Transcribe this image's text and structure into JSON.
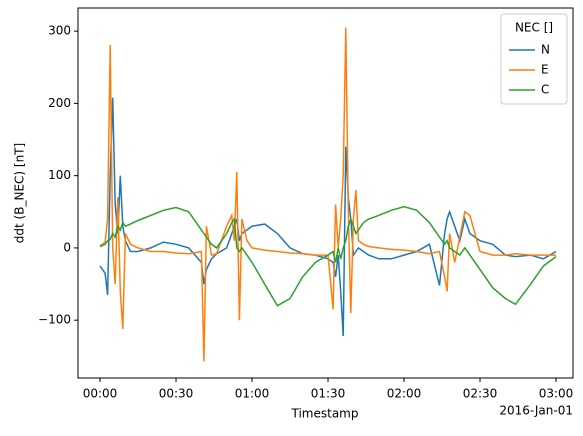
{
  "chart_data": {
    "type": "line",
    "x_label": "Timestamp",
    "y_label": "ddt (B_NEC) [nT]",
    "x_offset_label": "2016-Jan-01",
    "legend_title": "NEC []",
    "legend": "upper right",
    "x": [
      0,
      2,
      3,
      4,
      5,
      6,
      7,
      8,
      9,
      10,
      12,
      15,
      20,
      25,
      30,
      35,
      40,
      41,
      42,
      44,
      46,
      50,
      52,
      53,
      54,
      55,
      56,
      58,
      60,
      65,
      70,
      75,
      80,
      85,
      90,
      92,
      93,
      94,
      95,
      96,
      97,
      98,
      99,
      100,
      101,
      102,
      104,
      106,
      110,
      115,
      120,
      125,
      130,
      134,
      136,
      137,
      138,
      140,
      142,
      144,
      146,
      150,
      155,
      160,
      164,
      170,
      175,
      180
    ],
    "series": [
      {
        "name": "N",
        "color": "#1f77b4",
        "values": [
          -25,
          -35,
          -65,
          100,
          208,
          60,
          20,
          100,
          30,
          10,
          -5,
          -5,
          0,
          8,
          5,
          0,
          -20,
          -50,
          -30,
          -15,
          -8,
          0,
          20,
          30,
          40,
          10,
          20,
          25,
          30,
          33,
          20,
          0,
          -8,
          -10,
          -15,
          -20,
          -40,
          -10,
          -60,
          -122,
          140,
          70,
          40,
          -10,
          -5,
          0,
          -5,
          -10,
          -15,
          -15,
          -10,
          -5,
          5,
          -52,
          20,
          40,
          50,
          30,
          10,
          40,
          20,
          10,
          5,
          -10,
          -12,
          -10,
          -15,
          -5
        ]
      },
      {
        "name": "E",
        "color": "#ff7f0e",
        "values": [
          3,
          8,
          40,
          281,
          0,
          -50,
          70,
          -60,
          -112,
          20,
          5,
          0,
          -5,
          -5,
          -7,
          -8,
          -5,
          -157,
          30,
          -10,
          -8,
          30,
          45,
          10,
          105,
          -100,
          40,
          10,
          0,
          -3,
          -5,
          -7,
          -8,
          -10,
          -10,
          -85,
          60,
          0,
          40,
          100,
          305,
          50,
          -90,
          40,
          80,
          10,
          5,
          2,
          0,
          -2,
          -3,
          -5,
          -8,
          -5,
          -40,
          -60,
          20,
          -20,
          15,
          50,
          45,
          -5,
          -10,
          -10,
          -8,
          -10,
          -10,
          -10
        ]
      },
      {
        "name": "C",
        "color": "#2ca02c",
        "values": [
          2,
          5,
          10,
          12,
          20,
          15,
          30,
          25,
          35,
          30,
          33,
          38,
          45,
          52,
          56,
          50,
          25,
          20,
          15,
          5,
          0,
          20,
          35,
          40,
          0,
          -5,
          0,
          -10,
          -20,
          -50,
          -80,
          -70,
          -40,
          -20,
          -10,
          -5,
          -20,
          0,
          -15,
          0,
          10,
          30,
          40,
          30,
          20,
          25,
          35,
          40,
          45,
          52,
          57,
          52,
          35,
          15,
          5,
          10,
          0,
          -5,
          -10,
          0,
          -10,
          -30,
          -55,
          -70,
          -78,
          -50,
          -25,
          -12
        ]
      }
    ],
    "xlim": [
      -8.7,
      186.7
    ],
    "ylim": [
      -180,
      332
    ],
    "xticks": [
      {
        "value": 0,
        "label": "00:00"
      },
      {
        "value": 30,
        "label": "00:30"
      },
      {
        "value": 60,
        "label": "01:00"
      },
      {
        "value": 90,
        "label": "01:30"
      },
      {
        "value": 120,
        "label": "02:00"
      },
      {
        "value": 150,
        "label": "02:30"
      },
      {
        "value": 180,
        "label": "03:00"
      }
    ],
    "yticks": [
      {
        "value": -100,
        "label": "−100"
      },
      0,
      100,
      200,
      300
    ],
    "grid": false
  }
}
